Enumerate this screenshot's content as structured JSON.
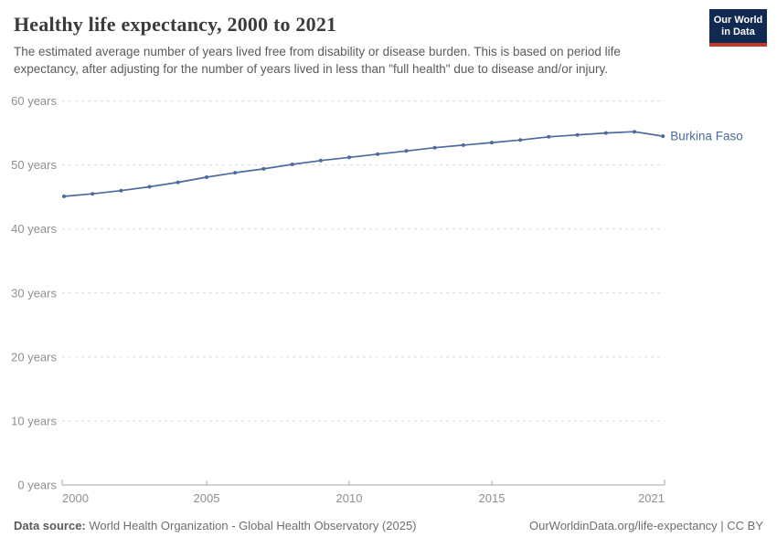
{
  "header": {
    "title": "Healthy life expectancy, 2000 to 2021",
    "subtitle": "The estimated average number of years lived free from disability or disease burden. This is based on period life expectancy, after adjusting for the number of years lived in less than \"full health\" due to disease and/or injury.",
    "logo": {
      "line1": "Our World",
      "line2": "in Data"
    }
  },
  "footer": {
    "source_label": "Data source:",
    "source_text": " World Health Organization - Global Health Observatory (2025)",
    "attribution": "OurWorldinData.org/life-expectancy | CC BY"
  },
  "chart_data": {
    "type": "line",
    "title": "Healthy life expectancy, 2000 to 2021",
    "x": [
      2000,
      2001,
      2002,
      2003,
      2004,
      2005,
      2006,
      2007,
      2008,
      2009,
      2010,
      2011,
      2012,
      2013,
      2014,
      2015,
      2016,
      2017,
      2018,
      2019,
      2020,
      2021
    ],
    "series": [
      {
        "name": "Burkina Faso",
        "color": "#4C6A9C",
        "values": [
          45.1,
          45.5,
          46.0,
          46.6,
          47.3,
          48.1,
          48.8,
          49.4,
          50.1,
          50.7,
          51.2,
          51.7,
          52.2,
          52.7,
          53.1,
          53.5,
          53.9,
          54.4,
          54.7,
          55.0,
          55.2,
          54.5
        ]
      }
    ],
    "xlabel": "",
    "ylabel": "",
    "ylim": [
      0,
      60
    ],
    "xlim": [
      2000,
      2021
    ],
    "yticks": [
      0,
      10,
      20,
      30,
      40,
      50,
      60
    ],
    "ytick_suffix": " years",
    "xticks": [
      2000,
      2005,
      2010,
      2015,
      2021
    ],
    "grid": "horizontal-dashed",
    "legend_position": "end-of-line-label"
  },
  "colors": {
    "line": "#4C6A9C",
    "grid": "#dadada",
    "axis": "#a5a5a5",
    "tick_text": "#8f8f8f",
    "logo_bg": "#112a51",
    "logo_stripe": "#c0392b"
  }
}
